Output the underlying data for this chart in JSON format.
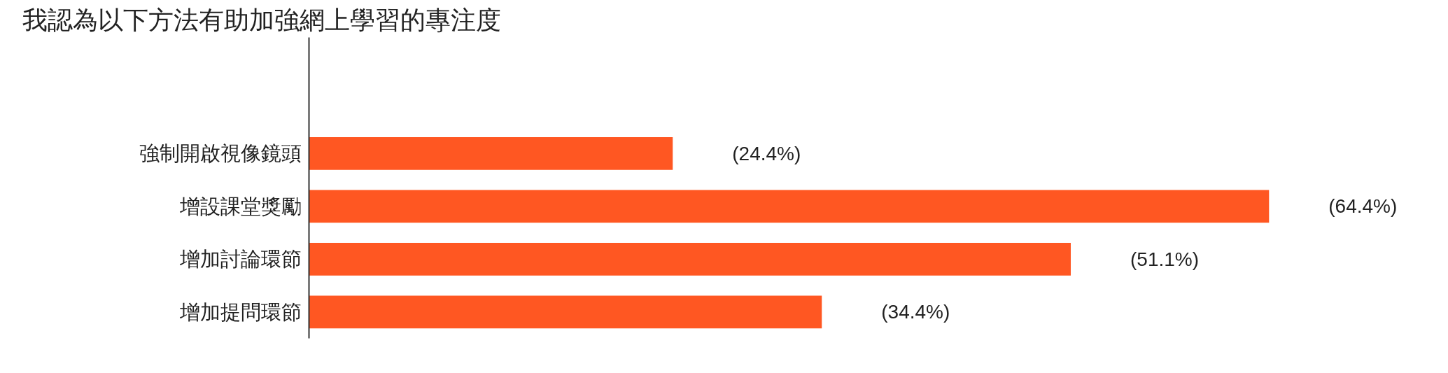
{
  "chart_data": {
    "type": "bar",
    "orientation": "horizontal",
    "title": "我認為以下方法有助加強網上學習的專注度",
    "categories": [
      "強制開啟視像鏡頭",
      "增設課堂獎勵",
      "增加討論環節",
      "增加提問環節"
    ],
    "values": [
      24.4,
      64.4,
      51.1,
      34.4
    ],
    "value_labels": [
      "(24.4%)",
      "(64.4%)",
      "(51.1%)",
      "(34.4%)"
    ],
    "color": "#ff5722",
    "tick_labels": "y"
  }
}
